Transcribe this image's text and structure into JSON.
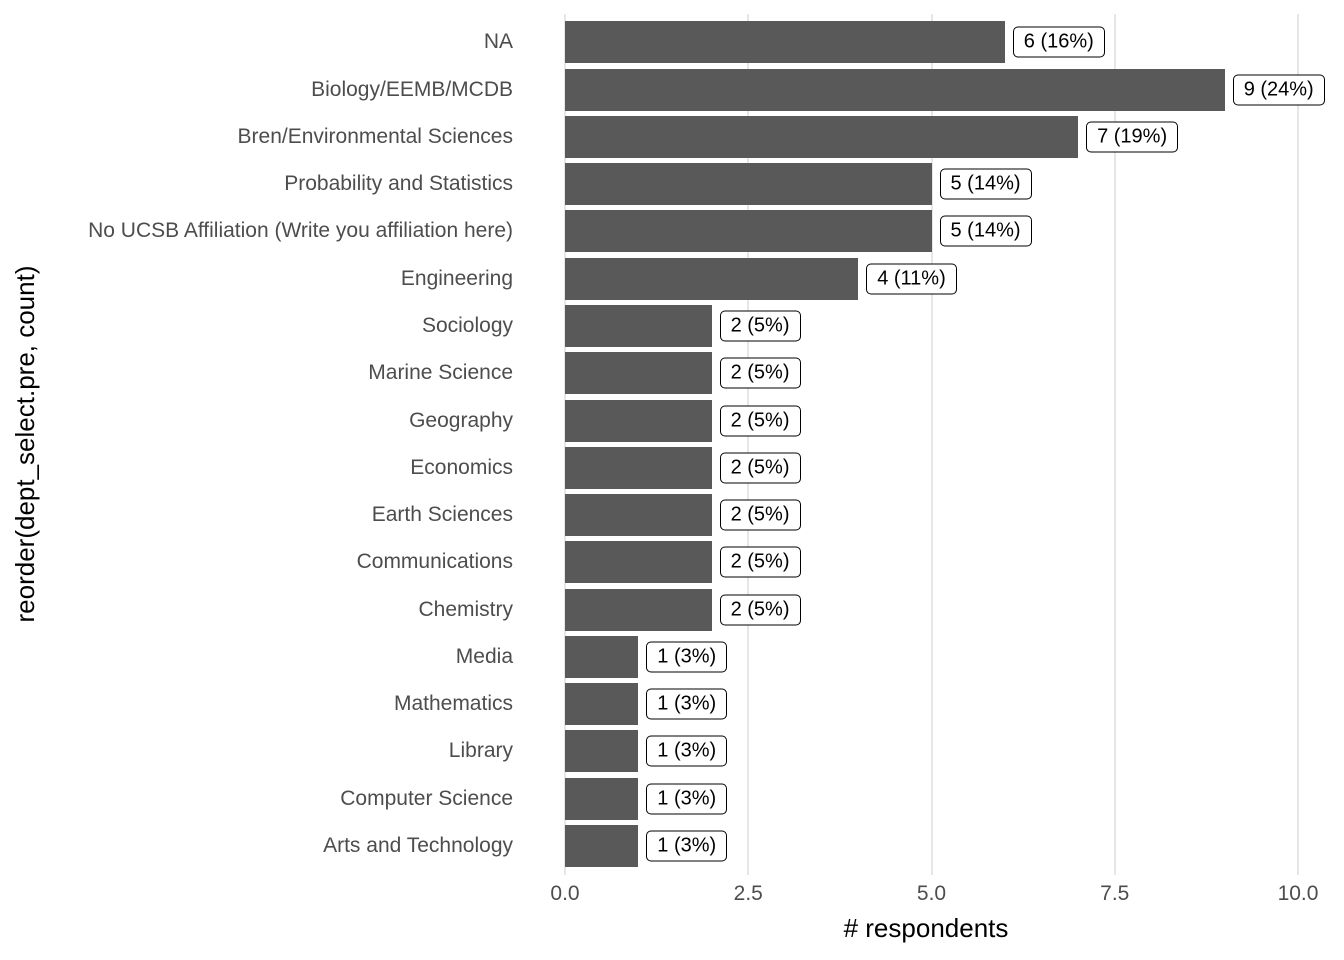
{
  "chart_data": {
    "type": "bar",
    "orientation": "horizontal",
    "title": "",
    "xlabel": "# respondents",
    "ylabel": "reorder(dept_select.pre, count)",
    "categories": [
      "NA",
      "Biology/EEMB/MCDB",
      "Bren/Environmental Sciences",
      "Probability and Statistics",
      "No UCSB Affiliation (Write you affiliation here)",
      "Engineering",
      "Sociology",
      "Marine Science",
      "Geography",
      "Economics",
      "Earth Sciences",
      "Communications",
      "Chemistry",
      "Media",
      "Mathematics",
      "Library",
      "Computer Science",
      "Arts and Technology"
    ],
    "values": [
      6,
      9,
      7,
      5,
      5,
      4,
      2,
      2,
      2,
      2,
      2,
      2,
      2,
      1,
      1,
      1,
      1,
      1
    ],
    "bar_labels": [
      "6 (16%)",
      "9 (24%)",
      "7 (19%)",
      "5 (14%)",
      "5 (14%)",
      "4 (11%)",
      "2 (5%)",
      "2 (5%)",
      "2 (5%)",
      "2 (5%)",
      "2 (5%)",
      "2 (5%)",
      "2 (5%)",
      "1 (3%)",
      "1 (3%)",
      "1 (3%)",
      "1 (3%)",
      "1 (3%)"
    ],
    "x_ticks": [
      0.0,
      2.5,
      5.0,
      7.5,
      10.0
    ],
    "x_tick_labels": [
      "0.0",
      "2.5",
      "5.0",
      "7.5",
      "10.0"
    ],
    "xlim": [
      0,
      10.2
    ],
    "grid": "major-x-only",
    "legend": "none",
    "bar_color": "#595959",
    "grid_color": "#E6E6E6",
    "axis_text_color": "#4D4D4D",
    "label_box": {
      "fill": "#FFFFFF",
      "border": "#000000",
      "text": "#000000"
    },
    "background": "#FFFFFF"
  }
}
